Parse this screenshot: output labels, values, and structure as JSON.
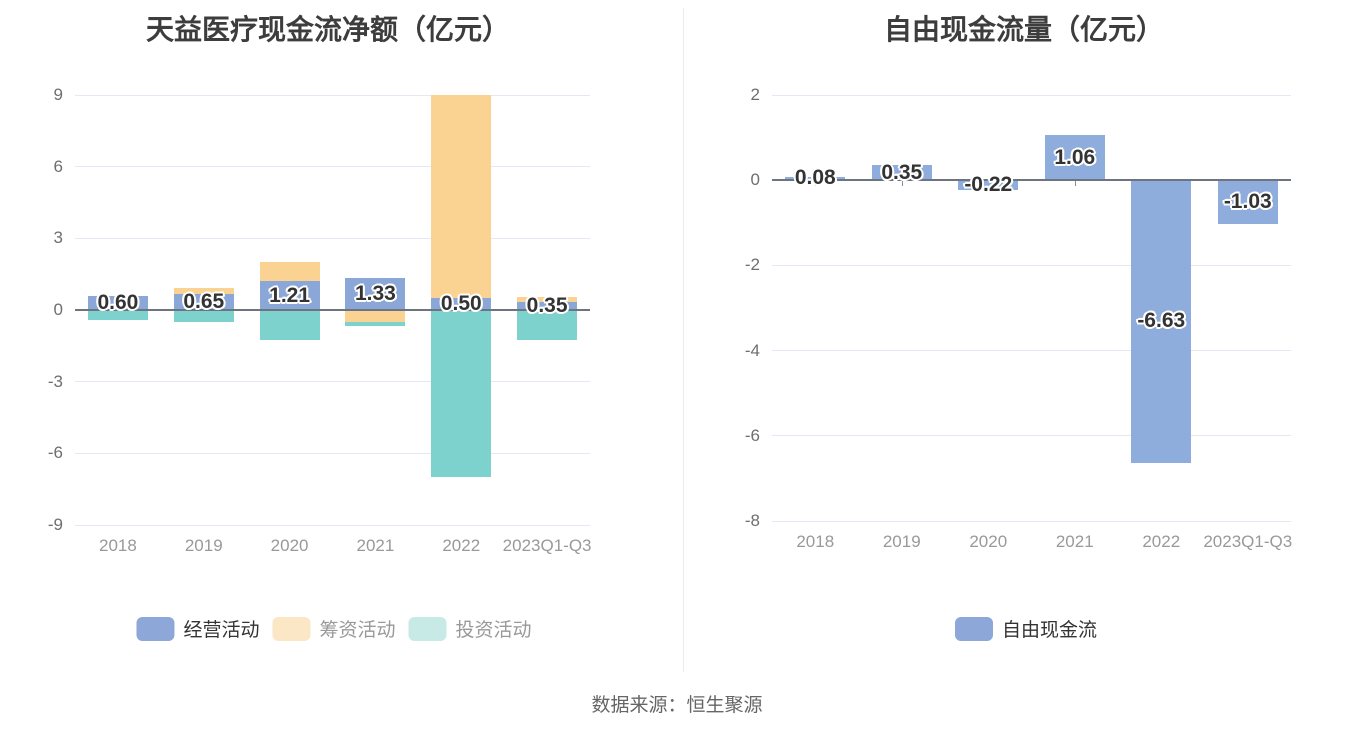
{
  "source": "数据来源：恒生聚源",
  "chart_data": [
    {
      "type": "bar",
      "stacked": true,
      "title": "天益医疗现金流净额（亿元）",
      "unit": "亿元",
      "categories": [
        "2018",
        "2019",
        "2020",
        "2021",
        "2022",
        "2023Q1-Q3"
      ],
      "ylim": [
        -9,
        9
      ],
      "yticks": [
        9,
        6,
        3,
        0,
        -3,
        -6,
        -9
      ],
      "grid": true,
      "legend_position": "bottom",
      "series": [
        {
          "name": "经营活动",
          "color": "#8BA7D8",
          "values": [
            0.6,
            0.65,
            1.21,
            1.33,
            0.5,
            0.35
          ],
          "labels": [
            "0.60",
            "0.65",
            "1.21",
            "1.33",
            "0.50",
            "0.35"
          ]
        },
        {
          "name": "筹资活动",
          "color": "#FAD392",
          "values": [
            0,
            0.27,
            0.82,
            -0.5,
            8.5,
            0.2
          ]
        },
        {
          "name": "投资活动",
          "color": "#7DD2CD",
          "values": [
            -0.41,
            -0.49,
            -1.26,
            -0.15,
            -6.97,
            -1.25
          ]
        }
      ],
      "legend": [
        {
          "label": "经营活动",
          "swatch": "#8CA7D8",
          "text_color": "#333333"
        },
        {
          "label": "筹资活动",
          "swatch": "#FBE7C5",
          "text_color": "#999999"
        },
        {
          "label": "投资活动",
          "swatch": "#C8EAE6",
          "text_color": "#999999"
        }
      ]
    },
    {
      "type": "bar",
      "stacked": false,
      "title": "自由现金流量（亿元）",
      "unit": "亿元",
      "categories": [
        "2018",
        "2019",
        "2020",
        "2021",
        "2022",
        "2023Q1-Q3"
      ],
      "ylim": [
        -8,
        2
      ],
      "yticks": [
        2,
        0,
        -2,
        -4,
        -6,
        -8
      ],
      "grid": true,
      "legend_position": "bottom",
      "series": [
        {
          "name": "自由现金流",
          "color": "#8EACDC",
          "values": [
            0.08,
            0.35,
            -0.22,
            1.06,
            -6.63,
            -1.03
          ],
          "labels": [
            "0.08",
            "0.35",
            "-0.22",
            "1.06",
            "-6.63",
            "-1.03"
          ]
        }
      ],
      "legend": [
        {
          "label": "自由现金流",
          "swatch": "#8CA7D8",
          "text_color": "#333333"
        }
      ]
    }
  ],
  "colors": {
    "background": "#FFFFFF",
    "gridline": "#E4E8F4",
    "zero_axis": "#6E7380",
    "y_tick_label": "#6E6E6E",
    "x_tick_label": "#999999",
    "title": "#3D3D3D",
    "value_label": "#333333",
    "divider": "#ECECEC",
    "source_text": "#666666"
  }
}
